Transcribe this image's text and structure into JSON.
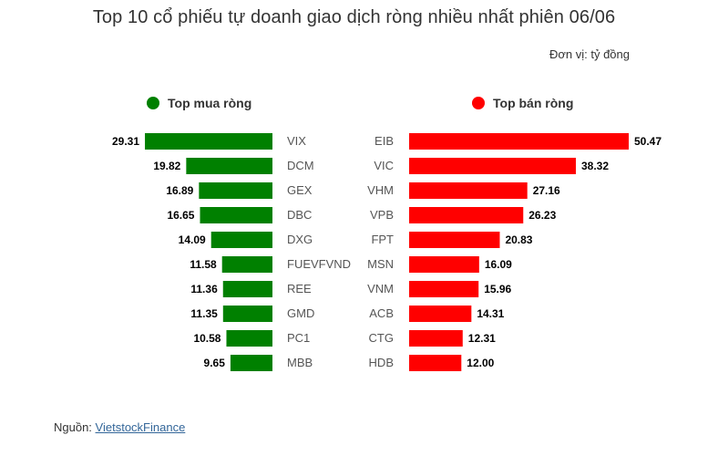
{
  "chart_data": {
    "type": "bar",
    "title": "Top 10 cổ phiếu tự doanh giao dịch ròng nhiều nhất phiên 06/06",
    "unit": "Đơn vị: tỷ đồng",
    "source_prefix": "Nguồn: ",
    "source_link": "VietstockFinance",
    "series": [
      {
        "name": "Top mua ròng",
        "color": "#008000",
        "categories": [
          "VIX",
          "DCM",
          "GEX",
          "DBC",
          "DXG",
          "FUEVFVND",
          "REE",
          "GMD",
          "PC1",
          "MBB"
        ],
        "values": [
          29.31,
          19.82,
          16.89,
          16.65,
          14.09,
          11.58,
          11.36,
          11.35,
          10.58,
          9.65
        ],
        "labels": [
          "29.31",
          "19.82",
          "16.89",
          "16.65",
          "14.09",
          "11.58",
          "11.36",
          "11.35",
          "10.58",
          "9.65"
        ]
      },
      {
        "name": "Top bán ròng",
        "color": "#ff0000",
        "categories": [
          "EIB",
          "VIC",
          "VHM",
          "VPB",
          "FPT",
          "MSN",
          "VNM",
          "ACB",
          "CTG",
          "HDB"
        ],
        "values": [
          50.47,
          38.32,
          27.16,
          26.23,
          20.83,
          16.09,
          15.96,
          14.31,
          12.31,
          12.0
        ],
        "labels": [
          "50.47",
          "38.32",
          "27.16",
          "26.23",
          "20.83",
          "16.09",
          "15.96",
          "14.31",
          "12.31",
          "12.00"
        ]
      }
    ]
  }
}
